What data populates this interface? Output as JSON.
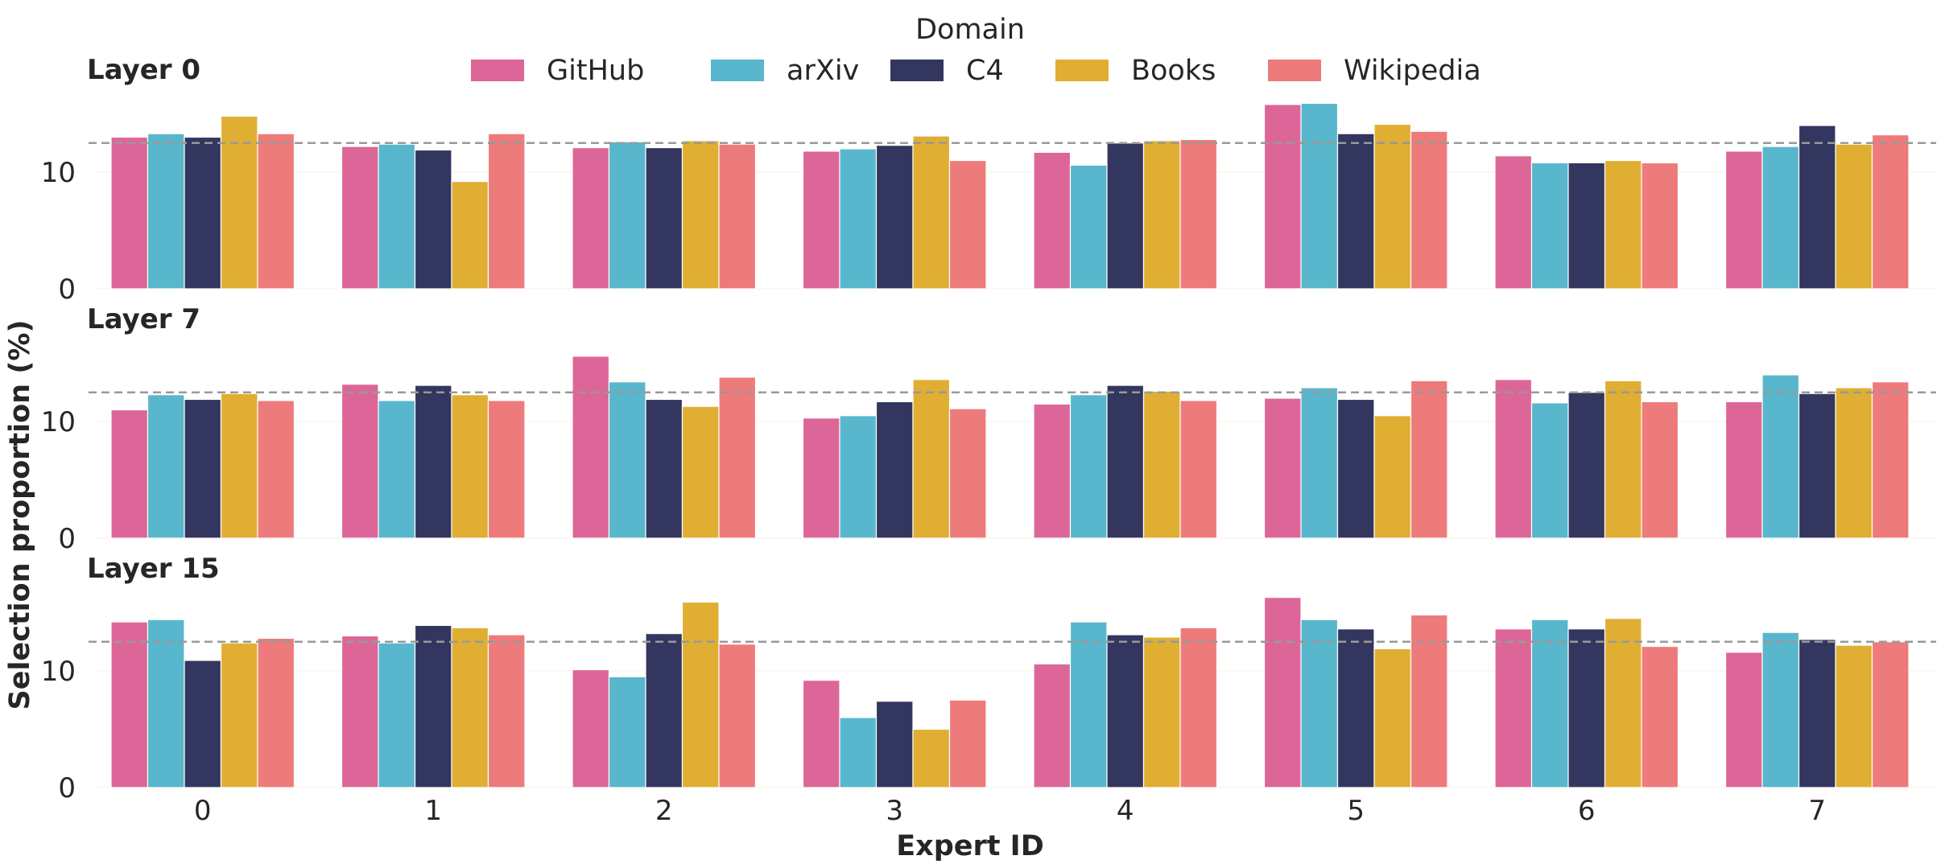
{
  "chart_data": {
    "type": "bar",
    "legend": {
      "title": "Domain",
      "placement": "top-center"
    },
    "xlabel": "Expert ID",
    "ylabel": "Selection proportion (%)",
    "categories": [
      "0",
      "1",
      "2",
      "3",
      "4",
      "5",
      "6",
      "7"
    ],
    "yticks": [
      "0",
      "10"
    ],
    "ylim": [
      0,
      17
    ],
    "reference_line": {
      "value": 12.5,
      "style": "dashed"
    },
    "grid": false,
    "panels": [
      {
        "title": "Layer 0",
        "series": [
          {
            "name": "GitHub",
            "color": "#dd6698",
            "values": [
              13.0,
              12.2,
              12.1,
              11.8,
              11.7,
              15.8,
              11.4,
              11.8
            ]
          },
          {
            "name": "arXiv",
            "color": "#58b7cc",
            "values": [
              13.3,
              12.4,
              12.6,
              12.0,
              10.6,
              15.9,
              10.8,
              12.2
            ]
          },
          {
            "name": "C4",
            "color": "#33365e",
            "values": [
              13.0,
              11.9,
              12.1,
              12.3,
              12.5,
              13.3,
              10.8,
              14.0
            ]
          },
          {
            "name": "Books",
            "color": "#e0ae33",
            "values": [
              14.8,
              9.2,
              12.7,
              13.1,
              12.7,
              14.1,
              11.0,
              12.4
            ]
          },
          {
            "name": "Wikipedia",
            "color": "#ee7b7b",
            "values": [
              13.3,
              13.3,
              12.4,
              11.0,
              12.8,
              13.5,
              10.8,
              13.2
            ]
          }
        ]
      },
      {
        "title": "Layer 7",
        "series": [
          {
            "name": "GitHub",
            "color": "#dd6698",
            "values": [
              11.0,
              13.2,
              15.6,
              10.3,
              11.5,
              12.0,
              13.6,
              11.7
            ]
          },
          {
            "name": "arXiv",
            "color": "#58b7cc",
            "values": [
              12.3,
              11.8,
              13.4,
              10.5,
              12.3,
              12.9,
              11.6,
              14.0
            ]
          },
          {
            "name": "C4",
            "color": "#33365e",
            "values": [
              11.9,
              13.1,
              11.9,
              11.7,
              13.1,
              11.9,
              12.5,
              12.4
            ]
          },
          {
            "name": "Books",
            "color": "#e0ae33",
            "values": [
              12.4,
              12.3,
              11.3,
              13.6,
              12.6,
              10.5,
              13.5,
              12.9
            ]
          },
          {
            "name": "Wikipedia",
            "color": "#ee7b7b",
            "values": [
              11.8,
              11.8,
              13.8,
              11.1,
              11.8,
              13.5,
              11.7,
              13.4
            ]
          }
        ]
      },
      {
        "title": "Layer 15",
        "series": [
          {
            "name": "GitHub",
            "color": "#dd6698",
            "values": [
              14.2,
              13.0,
              10.1,
              9.2,
              10.6,
              16.3,
              13.6,
              11.6
            ]
          },
          {
            "name": "arXiv",
            "color": "#58b7cc",
            "values": [
              14.4,
              12.4,
              9.5,
              6.0,
              14.2,
              14.4,
              14.4,
              13.3
            ]
          },
          {
            "name": "C4",
            "color": "#33365e",
            "values": [
              10.9,
              13.9,
              13.2,
              7.4,
              13.1,
              13.6,
              13.6,
              12.7
            ]
          },
          {
            "name": "Books",
            "color": "#e0ae33",
            "values": [
              12.4,
              13.7,
              15.9,
              5.0,
              12.9,
              11.9,
              14.5,
              12.2
            ]
          },
          {
            "name": "Wikipedia",
            "color": "#ee7b7b",
            "values": [
              12.8,
              13.1,
              12.3,
              7.5,
              13.7,
              14.8,
              12.1,
              12.5
            ]
          }
        ]
      }
    ]
  }
}
